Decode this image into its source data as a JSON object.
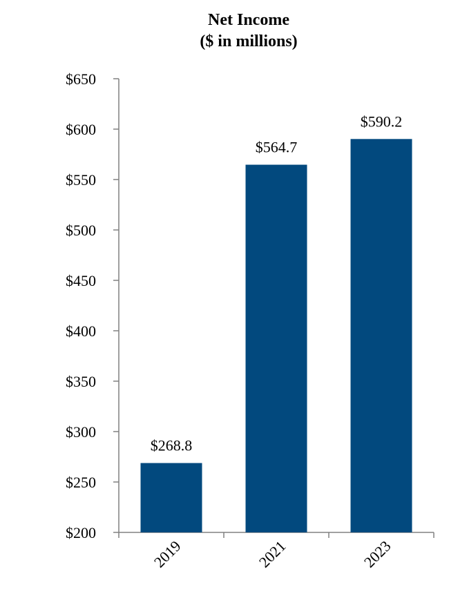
{
  "chart_data": {
    "type": "bar",
    "title": "Net Income",
    "subtitle": "($ in millions)",
    "categories": [
      "2019",
      "2021",
      "2023"
    ],
    "values": [
      268.8,
      564.7,
      590.2
    ],
    "data_labels": [
      "$268.8",
      "$564.7",
      "$590.2"
    ],
    "ylim": [
      200,
      650
    ],
    "yticks": [
      200,
      250,
      300,
      350,
      400,
      450,
      500,
      550,
      600,
      650
    ],
    "ytick_labels": [
      "$200",
      "$250",
      "$300",
      "$350",
      "$400",
      "$450",
      "$500",
      "$550",
      "$600",
      "$650"
    ],
    "xlabel": "",
    "ylabel": "",
    "grid": false,
    "legend": "none",
    "colors": {
      "bar": "#02497e",
      "axis": "#808080"
    }
  }
}
